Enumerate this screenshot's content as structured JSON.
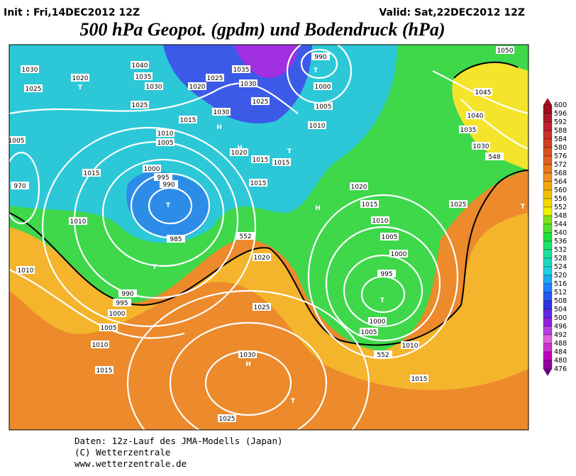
{
  "header": {
    "init": "Init : Fri,14DEC2012 12Z",
    "valid": "Valid: Sat,22DEC2012 12Z",
    "title": "500 hPa Geopot. (gpdm) und Bodendruck (hPa)"
  },
  "map_labels": [
    "1030",
    "1020",
    "1025",
    "T",
    "1040",
    "1035",
    "1030",
    "1025",
    "1020",
    "1035",
    "1030",
    "1025",
    "990",
    "T",
    "1000",
    "1005",
    "1010",
    "1025",
    "1030",
    "H",
    "1015",
    "1010",
    "1005",
    "H",
    "1020",
    "1015",
    "1015",
    "T",
    "1015",
    "1000",
    "995",
    "990",
    "T",
    "1015",
    "1010",
    "985",
    "T",
    "970",
    "1005",
    "1010",
    "990",
    "995",
    "1000",
    "1005",
    "1010",
    "1015",
    "1020",
    "1025",
    "1030",
    "H",
    "T",
    "1025",
    "1020",
    "1015",
    "1010",
    "1005",
    "1000",
    "995",
    "T",
    "1000",
    "1005",
    "1010",
    "1015",
    "H",
    "1030",
    "1035",
    "1040",
    "1045",
    "1050",
    "1025",
    "T",
    "552",
    "552",
    "548"
  ],
  "colorbar": {
    "labels": [
      600,
      596,
      592,
      588,
      584,
      580,
      576,
      572,
      568,
      564,
      560,
      556,
      552,
      548,
      544,
      540,
      536,
      532,
      528,
      524,
      520,
      516,
      512,
      508,
      504,
      500,
      496,
      492,
      488,
      484,
      480,
      476
    ]
  },
  "footer": [
    "Daten: 12z-Lauf des JMA-Modells (Japan)",
    "(C) Wetterzentrale",
    "www.wetterzentrale.de"
  ]
}
